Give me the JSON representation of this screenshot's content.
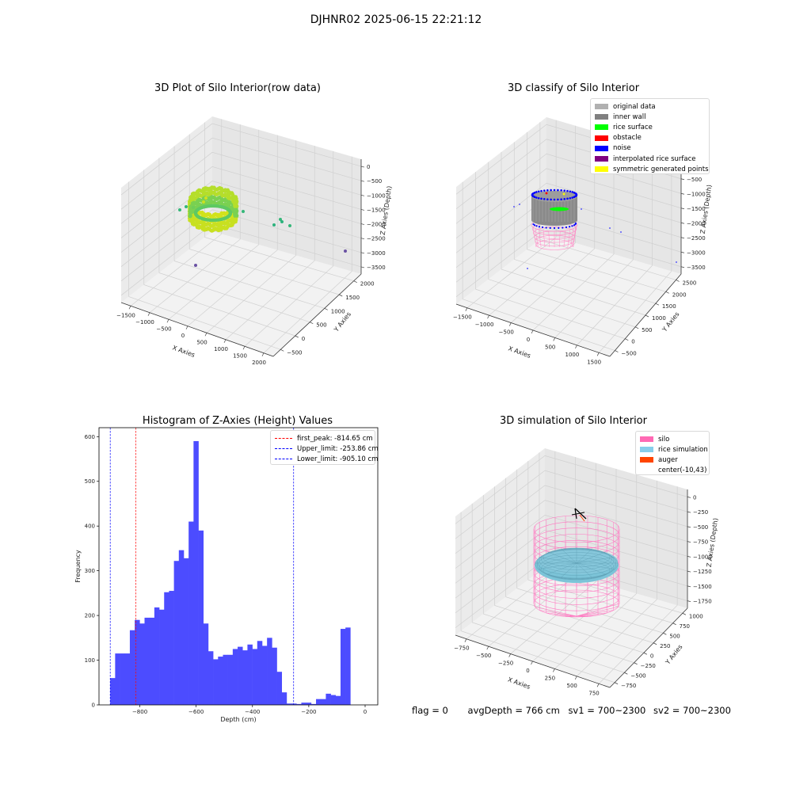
{
  "suptitle": "DJHNR02 2025-06-15 22:21:12",
  "chart_data": [
    {
      "type": "scatter",
      "projection": "3d",
      "title": "3D Plot of Silo Interior(row data)",
      "xlabel": "X Axies",
      "ylabel": "Y Axies",
      "zlabel": "Z Axies (Depth)",
      "x_ticks": [
        "−1500",
        "−1000",
        "−500",
        "0",
        "500",
        "1000",
        "1500",
        "2000"
      ],
      "y_ticks": [
        "−500",
        "0",
        "500",
        "1000",
        "1500",
        "2000"
      ],
      "z_ticks": [
        "0",
        "−500",
        "−1000",
        "−1500",
        "−2000",
        "−2500",
        "−3000",
        "−3500"
      ],
      "colormap": "viridis (depth-coloured)",
      "grid": true
    },
    {
      "type": "scatter",
      "projection": "3d",
      "title": "3D classify of Silo Interior",
      "xlabel": "X Axies",
      "ylabel": "Y Axies",
      "zlabel": "Z Axies (Depth)",
      "x_ticks": [
        "−1500",
        "−1000",
        "−500",
        "0",
        "500",
        "1000",
        "1500"
      ],
      "y_ticks": [
        "−500",
        "0",
        "500",
        "1000",
        "1500",
        "2000",
        "2500"
      ],
      "z_ticks": [
        "0",
        "−500",
        "−1000",
        "−1500",
        "−2000",
        "−2500",
        "−3000",
        "−3500"
      ],
      "legend_position": "top-right",
      "legend": [
        {
          "label": "original data",
          "color": "#b0b0b0"
        },
        {
          "label": "inner wall",
          "color": "#808080"
        },
        {
          "label": "rice surface",
          "color": "#00ff00"
        },
        {
          "label": "obstacle",
          "color": "#ff0000"
        },
        {
          "label": "noise",
          "color": "#0000ff"
        },
        {
          "label": "interpolated rice surface",
          "color": "#800080"
        },
        {
          "label": "symmetric generated points",
          "color": "#ffff00"
        }
      ],
      "grid": true
    },
    {
      "type": "bar",
      "title": "Histogram of Z-Axies (Height) Values",
      "xlabel": "Depth (cm)",
      "ylabel": "Frequency",
      "xlim": [
        -945,
        45
      ],
      "ylim": [
        0,
        620
      ],
      "x_ticks": [
        -800,
        -600,
        -400,
        -200,
        0
      ],
      "x_tick_labels": [
        "−800",
        "−600",
        "−400",
        "−200",
        "0"
      ],
      "y_ticks": [
        0,
        100,
        200,
        300,
        400,
        500,
        600
      ],
      "bar_color": "#4c4cff",
      "bins": {
        "start": -905.1,
        "width": 17.4,
        "counts": [
          60,
          115,
          115,
          115,
          167,
          190,
          182,
          195,
          195,
          218,
          213,
          252,
          255,
          322,
          346,
          328,
          410,
          590,
          390,
          182,
          120,
          102,
          108,
          112,
          112,
          125,
          130,
          122,
          135,
          125,
          143,
          132,
          150,
          128,
          74,
          28,
          3,
          3,
          2,
          5,
          5,
          2,
          13,
          13,
          25,
          22,
          20,
          170,
          173
        ]
      },
      "vlines": [
        {
          "label": "first_peak: -814.65 cm",
          "x": -814.65,
          "color": "#ff0000"
        },
        {
          "label": "Upper_limit: -253.86 cm",
          "x": -253.86,
          "color": "#0000ff"
        },
        {
          "label": "Lower_limit: -905.10 cm",
          "x": -905.1,
          "color": "#0000ff"
        }
      ],
      "legend_position": "top-right",
      "grid": false
    },
    {
      "type": "scatter",
      "projection": "3d",
      "title": "3D simulation of Silo Interior",
      "xlabel": "X Axies",
      "ylabel": "Y Axies",
      "zlabel": "Z Axies (Depth)",
      "x_ticks": [
        "−750",
        "−500",
        "−250",
        "0",
        "250",
        "500",
        "750"
      ],
      "y_ticks": [
        "−750",
        "−500",
        "−250",
        "0",
        "250",
        "500",
        "750",
        "1000"
      ],
      "z_ticks": [
        "0",
        "−250",
        "−500",
        "−750",
        "−1000",
        "−1250",
        "−1500",
        "−1750"
      ],
      "legend_position": "top-right",
      "legend": [
        {
          "label": "silo",
          "color": "#ff69b4"
        },
        {
          "label": "rice simulation",
          "color": "#87ceeb"
        },
        {
          "label": "auger",
          "color": "#ff4500"
        },
        {
          "label": "center(-10,43)",
          "color": ""
        }
      ],
      "grid": true
    }
  ],
  "footer": {
    "flag": "flag = 0",
    "avg_depth": "avgDepth = 766 cm",
    "sv1": "sv1 = 700~2300",
    "sv2": "sv2 = 700~2300"
  }
}
